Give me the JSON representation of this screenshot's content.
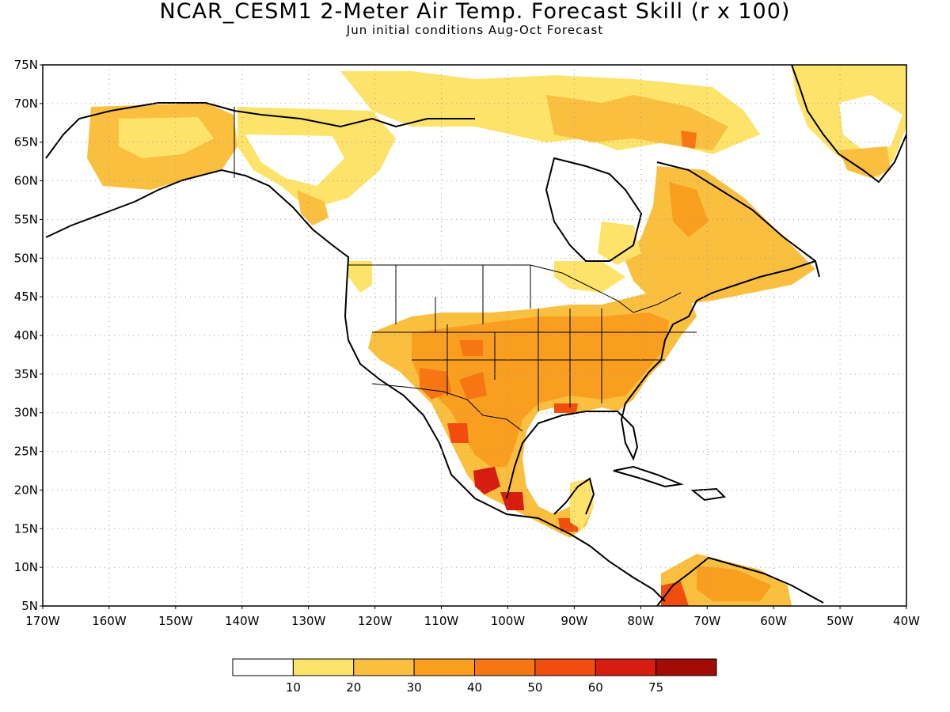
{
  "title": "NCAR_CESM1 2-Meter Air Temp. Forecast Skill (r x 100)",
  "subtitle": "Jun initial conditions  Aug-Oct Forecast",
  "lat_labels": [
    "75N",
    "70N",
    "65N",
    "60N",
    "55N",
    "50N",
    "45N",
    "40N",
    "35N",
    "30N",
    "25N",
    "20N",
    "15N",
    "10N",
    "5N"
  ],
  "lon_labels": [
    "170W",
    "160W",
    "150W",
    "140W",
    "130W",
    "120W",
    "110W",
    "100W",
    "90W",
    "80W",
    "70W",
    "60W",
    "50W",
    "40W"
  ],
  "legend": {
    "labels": [
      "10",
      "20",
      "30",
      "40",
      "50",
      "60",
      "75"
    ],
    "colors": [
      "#ffffff",
      "#fde36a",
      "#fbbf40",
      "#f99e1e",
      "#f77612",
      "#f14d0f",
      "#d61d0f",
      "#a30b05"
    ]
  },
  "map": {
    "lat_range": [
      5,
      75
    ],
    "lon_range": [
      -170,
      -40
    ],
    "grid": "dotted"
  }
}
